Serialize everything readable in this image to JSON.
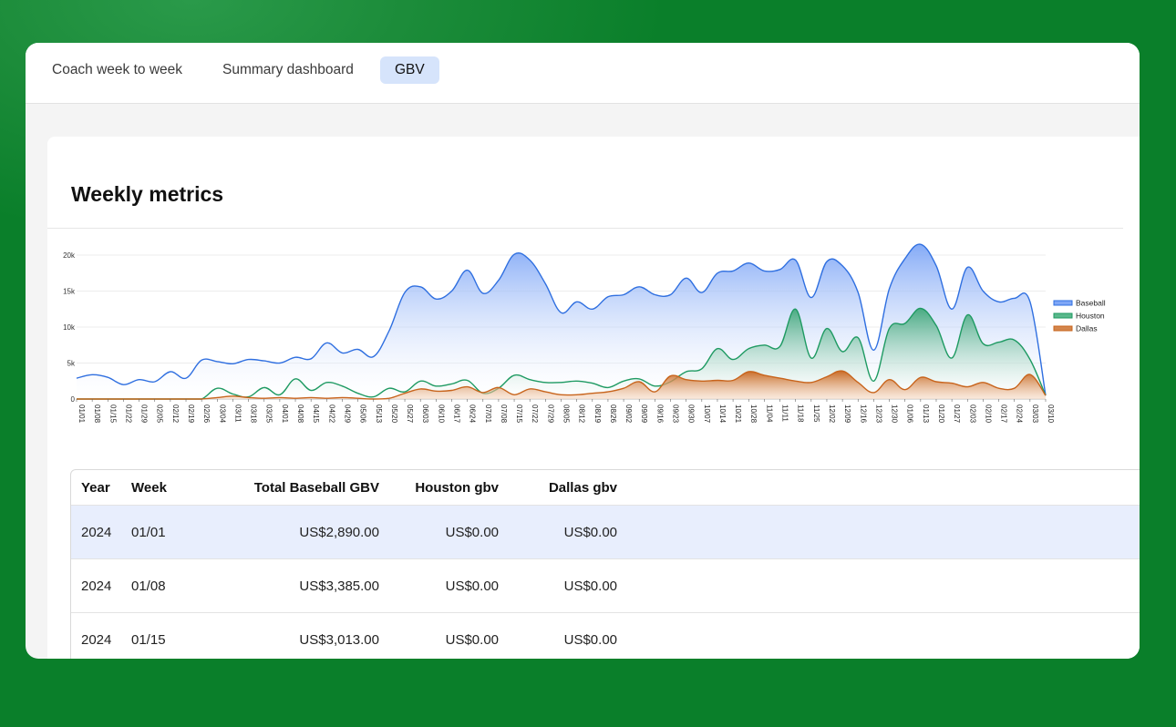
{
  "tabs": [
    {
      "label": "Coach week to week",
      "active": false
    },
    {
      "label": "Summary dashboard",
      "active": false
    },
    {
      "label": "GBV",
      "active": true
    }
  ],
  "panel": {
    "title": "Weekly metrics"
  },
  "chart_data": {
    "type": "area",
    "title": "",
    "xlabel": "",
    "ylabel": "",
    "ylim": [
      0,
      20000
    ],
    "yticks": [
      "0",
      "5k",
      "10k",
      "15k",
      "20k"
    ],
    "grid": true,
    "legend_position": "right",
    "x": [
      "01/01",
      "01/08",
      "01/15",
      "01/22",
      "01/29",
      "02/05",
      "02/12",
      "02/19",
      "02/26",
      "03/04",
      "03/11",
      "03/18",
      "03/25",
      "04/01",
      "04/08",
      "04/15",
      "04/22",
      "04/29",
      "05/06",
      "05/13",
      "05/20",
      "05/27",
      "06/03",
      "06/10",
      "06/17",
      "06/24",
      "07/01",
      "07/08",
      "07/15",
      "07/22",
      "07/29",
      "08/05",
      "08/12",
      "08/19",
      "08/26",
      "09/02",
      "09/09",
      "09/16",
      "09/23",
      "09/30",
      "10/07",
      "10/14",
      "10/21",
      "10/28",
      "11/04",
      "11/11",
      "11/18",
      "11/25",
      "12/02",
      "12/09",
      "12/16",
      "12/23",
      "12/30",
      "01/06",
      "01/13",
      "01/20",
      "01/27",
      "02/03",
      "02/10",
      "02/17",
      "02/24",
      "03/03",
      "03/10"
    ],
    "series": [
      {
        "name": "Baseball",
        "color": "#2f6fe0",
        "fill": "#7ea6f6",
        "values": [
          2890,
          3385,
          3013,
          2000,
          2700,
          2400,
          3800,
          2900,
          5400,
          5200,
          4900,
          5500,
          5300,
          5000,
          5800,
          5600,
          7800,
          6400,
          6900,
          5900,
          9500,
          14800,
          15600,
          13900,
          15000,
          17900,
          14700,
          16500,
          20100,
          19300,
          16000,
          12000,
          13500,
          12500,
          14200,
          14500,
          15600,
          14500,
          14500,
          16800,
          14800,
          17500,
          17800,
          18900,
          17800,
          18000,
          19300,
          14100,
          19100,
          18500,
          14800,
          6800,
          15300,
          19500,
          21500,
          18500,
          12500,
          18300,
          15000,
          13500,
          14000,
          13500,
          500
        ]
      },
      {
        "name": "Houston",
        "color": "#1e9a62",
        "fill": "#5ab88c",
        "values": [
          0,
          0,
          0,
          0,
          0,
          0,
          0,
          0,
          0,
          1500,
          700,
          300,
          1600,
          600,
          2800,
          1200,
          2300,
          1800,
          800,
          300,
          1500,
          1000,
          2500,
          1800,
          2100,
          2600,
          800,
          1500,
          3300,
          2700,
          2300,
          2300,
          2500,
          2200,
          1600,
          2500,
          2800,
          1800,
          2400,
          3800,
          4200,
          7000,
          5500,
          7000,
          7500,
          7300,
          12500,
          5700,
          9800,
          6600,
          8500,
          2500,
          9800,
          10500,
          12600,
          10200,
          5700,
          11700,
          7700,
          7900,
          8200,
          5500,
          500
        ]
      },
      {
        "name": "Dallas",
        "color": "#c8641c",
        "fill": "#d4864c",
        "values": [
          0,
          0,
          0,
          0,
          0,
          0,
          0,
          0,
          0,
          200,
          400,
          200,
          100,
          200,
          100,
          200,
          100,
          200,
          100,
          0,
          100,
          800,
          1400,
          1100,
          1200,
          1700,
          900,
          1600,
          600,
          1400,
          1000,
          600,
          600,
          800,
          1000,
          1500,
          2400,
          1000,
          3200,
          2700,
          2500,
          2600,
          2600,
          3800,
          3300,
          2900,
          2500,
          2300,
          3100,
          3900,
          2300,
          900,
          2700,
          1300,
          3000,
          2400,
          2200,
          1700,
          2300,
          1500,
          1500,
          3400,
          500
        ]
      }
    ]
  },
  "table": {
    "headers": [
      "Year",
      "Week",
      "Total Baseball GBV",
      "Houston gbv",
      "Dallas gbv"
    ],
    "rows": [
      [
        "2024",
        "01/01",
        "US$2,890.00",
        "US$0.00",
        "US$0.00"
      ],
      [
        "2024",
        "01/08",
        "US$3,385.00",
        "US$0.00",
        "US$0.00"
      ],
      [
        "2024",
        "01/15",
        "US$3,013.00",
        "US$0.00",
        "US$0.00"
      ]
    ]
  }
}
